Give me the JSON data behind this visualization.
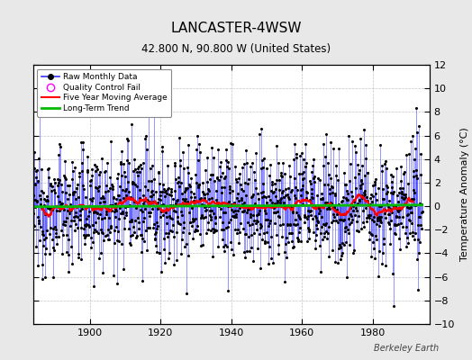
{
  "title": "LANCASTER-4WSW",
  "subtitle": "42.800 N, 90.800 W (United States)",
  "ylabel": "Temperature Anomaly (°C)",
  "credit": "Berkeley Earth",
  "xlim": [
    1884,
    1996
  ],
  "ylim": [
    -10,
    12
  ],
  "yticks": [
    -10,
    -8,
    -6,
    -4,
    -2,
    0,
    2,
    4,
    6,
    8,
    10,
    12
  ],
  "xticks": [
    1900,
    1920,
    1940,
    1960,
    1980
  ],
  "bg_color": "#e8e8e8",
  "plot_bg_color": "#ffffff",
  "raw_line_color": "#3333ff",
  "raw_marker_color": "#000000",
  "qc_fail_color": "#ff00ff",
  "moving_avg_color": "#ff0000",
  "trend_color": "#00bb00",
  "seed": 12345,
  "start_year": 1884,
  "end_year": 1994
}
